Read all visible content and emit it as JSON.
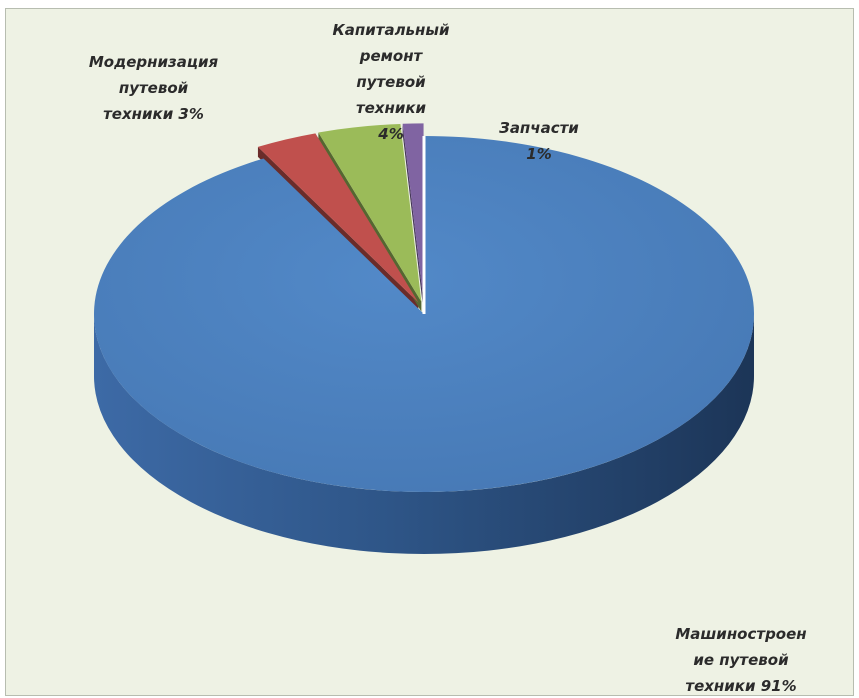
{
  "chart_data": {
    "type": "pie",
    "title": "",
    "three_d": true,
    "start": "top, clockwise",
    "colors": {
      "background": "#eef2e4",
      "border": "#b7bdb0"
    },
    "slices": [
      {
        "label_lines": [
          "Машиностроен",
          "ие путевой",
          "техники 91%"
        ],
        "value": 91,
        "color": "#4a7ebb",
        "exploded": false
      },
      {
        "label_lines": [
          "Модернизация",
          "путевой",
          "техники  3%"
        ],
        "value": 3,
        "color": "#c0504d",
        "exploded": true
      },
      {
        "label_lines": [
          "Капитальный",
          "ремонт",
          "путевой",
          "техники",
          "4%"
        ],
        "value": 4,
        "color": "#9bbb59",
        "exploded": true
      },
      {
        "label_lines": [
          "Запчасти",
          "1%"
        ],
        "value": 1,
        "color": "#8064a2",
        "exploded": true
      }
    ]
  }
}
